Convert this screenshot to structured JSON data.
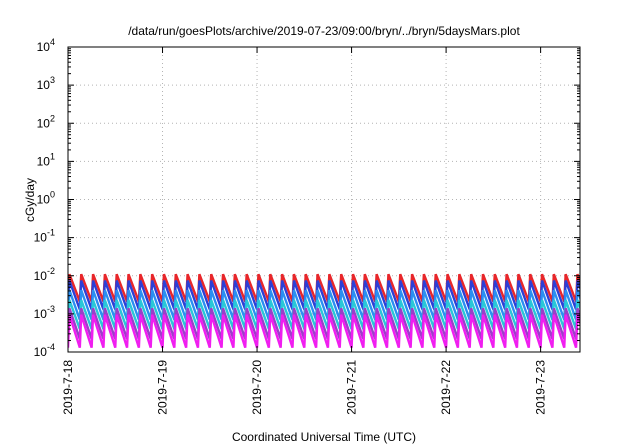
{
  "chart_data": {
    "type": "line",
    "title": "/data/run/goesPlots/archive/2019-07-23/09:00/bryn/../bryn/5daysMars.plot",
    "xlabel": "Coordinated Universal Time (UTC)",
    "ylabel": "cGy/day",
    "yscale": "log",
    "ylim": [
      0.0001,
      10000
    ],
    "xlim": [
      "2019-07-18T00:00",
      "2019-07-23T10:00"
    ],
    "grid": true,
    "legend": "none",
    "x_ticks": [
      "2019-7-18",
      "2019-7-19",
      "2019-7-20",
      "2019-7-21",
      "2019-7-22",
      "2019-7-23"
    ],
    "y_ticks": [
      {
        "base": "10",
        "exp": "-4"
      },
      {
        "base": "10",
        "exp": "-3"
      },
      {
        "base": "10",
        "exp": "-2"
      },
      {
        "base": "10",
        "exp": "-1"
      },
      {
        "base": "10",
        "exp": "0"
      },
      {
        "base": "10",
        "exp": "1"
      },
      {
        "base": "10",
        "exp": "2"
      },
      {
        "base": "10",
        "exp": "3"
      },
      {
        "base": "10",
        "exp": "4"
      }
    ],
    "sawtooth_period_hours": 3,
    "series": [
      {
        "color": "#e8262a",
        "peak": 0.011,
        "trough": 0.0021
      },
      {
        "color": "#2d3fd6",
        "peak": 0.0075,
        "trough": 0.0013
      },
      {
        "color": "#2a8ff2",
        "peak": 0.0042,
        "trough": 0.0007
      },
      {
        "color": "#29c7d8",
        "peak": 0.0023,
        "trough": 0.0004
      },
      {
        "color": "#9a3fc8",
        "peak": 0.0014,
        "trough": 0.00022
      },
      {
        "color": "#f01ef0",
        "peak": 0.00095,
        "trough": 0.00013
      }
    ]
  }
}
